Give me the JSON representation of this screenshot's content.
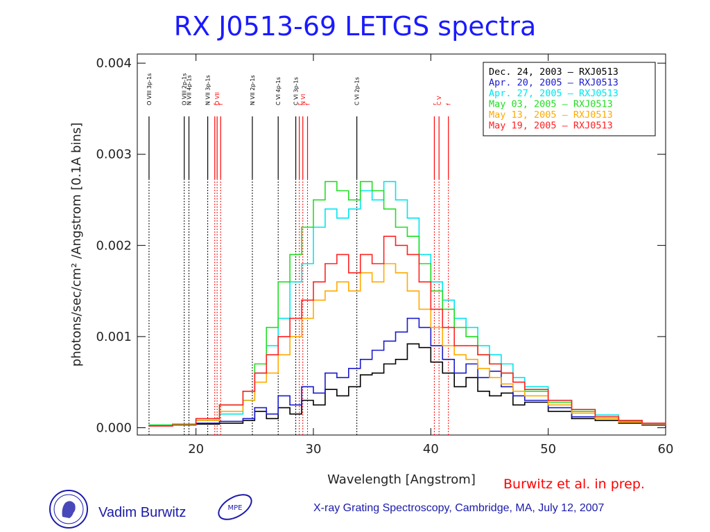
{
  "slide": {
    "title": "RX J0513-69 LETGS spectra",
    "credit": "Burwitz et al. in prep.",
    "author": "Vadim Burwitz",
    "conference": "X-ray Grating Spectroscopy, Cambridge, MA, July 12, 2007",
    "logo_right_text": "MPE"
  },
  "chart_data": {
    "type": "line",
    "xlabel": "Wavelength [Angstrom]",
    "ylabel": "photons/sec/cm² /Angstrom [0.1A bins]",
    "xlim": [
      15,
      60
    ],
    "ylim": [
      -8e-05,
      0.0041
    ],
    "xticks": [
      20,
      30,
      40,
      50,
      60
    ],
    "yticks": [
      0.0,
      0.001,
      0.002,
      0.003,
      0.004
    ],
    "ytick_labels": [
      "0.000",
      "0.001",
      "0.002",
      "0.003",
      "0.004"
    ],
    "grid": false,
    "legend_position": "top-right",
    "line_markers": [
      {
        "x": 16.0,
        "label": "O VIII 3p-1s",
        "color": "#000000"
      },
      {
        "x": 19.0,
        "label": "O VIII 2p-1s",
        "color": "#000000"
      },
      {
        "x": 19.4,
        "label": "N VII 4p-1s",
        "color": "#000000"
      },
      {
        "x": 21.0,
        "label": "N VII 3p-1s",
        "color": "#000000"
      },
      {
        "x": 21.6,
        "label": "r",
        "color": "#ff0000"
      },
      {
        "x": 21.8,
        "label": "O VII",
        "color": "#ff0000"
      },
      {
        "x": 22.1,
        "label": "f",
        "color": "#ff0000"
      },
      {
        "x": 24.8,
        "label": "N VII 2p-1s",
        "color": "#000000"
      },
      {
        "x": 27.0,
        "label": "C VI 4p-1s",
        "color": "#000000"
      },
      {
        "x": 28.5,
        "label": "C VI 3p-1s",
        "color": "#000000"
      },
      {
        "x": 28.8,
        "label": "r",
        "color": "#ff0000"
      },
      {
        "x": 29.1,
        "label": "N VI",
        "color": "#ff0000"
      },
      {
        "x": 29.5,
        "label": "f",
        "color": "#ff0000"
      },
      {
        "x": 33.7,
        "label": "C VI 2p-1s",
        "color": "#000000"
      },
      {
        "x": 40.3,
        "label": "r",
        "color": "#ff0000"
      },
      {
        "x": 40.7,
        "label": "C V",
        "color": "#ff0000"
      },
      {
        "x": 41.5,
        "label": "f",
        "color": "#ff0000"
      }
    ],
    "series": [
      {
        "name": "Dec. 24, 2003 – RXJ0513",
        "legend_date": "Dec. 24, 2003",
        "color": "#000000",
        "x": [
          16,
          18,
          20,
          22,
          24,
          25,
          26,
          27,
          28,
          29,
          30,
          31,
          32,
          33,
          34,
          35,
          36,
          37,
          38,
          39,
          40,
          41,
          42,
          43,
          44,
          45,
          46,
          47,
          48,
          50,
          52,
          54,
          56,
          58,
          60
        ],
        "y": [
          2e-05,
          3e-05,
          4e-05,
          5e-05,
          8e-05,
          0.00018,
          0.0001,
          0.00022,
          0.00015,
          0.0003,
          0.00025,
          0.00042,
          0.00035,
          0.00045,
          0.00058,
          0.0006,
          0.0007,
          0.00075,
          0.00092,
          0.00088,
          0.00072,
          0.0006,
          0.00045,
          0.00055,
          0.0004,
          0.00035,
          0.00038,
          0.00025,
          0.00028,
          0.00018,
          0.0001,
          8e-05,
          5e-05,
          3e-05,
          1e-05
        ]
      },
      {
        "name": "Apr. 20, 2005 – RXJ0513",
        "legend_date": "Apr. 20, 2005",
        "color": "#1a1acc",
        "x": [
          16,
          18,
          20,
          22,
          24,
          25,
          26,
          27,
          28,
          29,
          30,
          31,
          32,
          33,
          34,
          35,
          36,
          37,
          38,
          39,
          40,
          41,
          42,
          43,
          44,
          45,
          46,
          47,
          48,
          50,
          52,
          54,
          56,
          58,
          60
        ],
        "y": [
          2e-05,
          3e-05,
          5e-05,
          7e-05,
          0.0001,
          0.00022,
          0.00015,
          0.00035,
          0.00025,
          0.00045,
          0.00038,
          0.0006,
          0.00055,
          0.00065,
          0.00075,
          0.00085,
          0.00095,
          0.00105,
          0.0012,
          0.0011,
          0.0009,
          0.00075,
          0.0006,
          0.0007,
          0.00055,
          0.00062,
          0.00045,
          0.00035,
          0.0003,
          0.00022,
          0.00012,
          0.0001,
          6e-05,
          3e-05,
          1e-05
        ]
      },
      {
        "name": "Apr. 27, 2005 – RXJ0513",
        "legend_date": "Apr. 27, 2005",
        "color": "#00e5ee",
        "x": [
          16,
          18,
          20,
          22,
          24,
          25,
          26,
          27,
          28,
          29,
          30,
          31,
          32,
          33,
          34,
          35,
          36,
          37,
          38,
          39,
          40,
          41,
          42,
          43,
          44,
          45,
          46,
          47,
          48,
          50,
          52,
          54,
          56,
          58,
          60
        ],
        "y": [
          3e-05,
          4e-05,
          8e-05,
          0.00015,
          0.0003,
          0.0006,
          0.0009,
          0.0012,
          0.0016,
          0.0018,
          0.0022,
          0.0024,
          0.0023,
          0.0024,
          0.0026,
          0.0025,
          0.0027,
          0.0025,
          0.0023,
          0.0019,
          0.0016,
          0.0014,
          0.0012,
          0.0011,
          0.0009,
          0.0008,
          0.0007,
          0.00055,
          0.00045,
          0.0003,
          0.0002,
          0.00014,
          8e-05,
          5e-05,
          2e-05
        ]
      },
      {
        "name": "May 03, 2005 – RXJ0513",
        "legend_date": "May   03, 2005",
        "color": "#22dd22",
        "x": [
          16,
          18,
          20,
          22,
          24,
          25,
          26,
          27,
          28,
          29,
          30,
          31,
          32,
          33,
          34,
          35,
          36,
          37,
          38,
          39,
          40,
          41,
          42,
          43,
          44,
          45,
          46,
          47,
          48,
          50,
          52,
          54,
          56,
          58,
          60
        ],
        "y": [
          3e-05,
          4e-05,
          0.0001,
          0.00025,
          0.0004,
          0.0007,
          0.0011,
          0.0016,
          0.0019,
          0.0022,
          0.0025,
          0.0027,
          0.0026,
          0.0025,
          0.0027,
          0.0026,
          0.0024,
          0.0022,
          0.0021,
          0.0018,
          0.0015,
          0.0013,
          0.0011,
          0.001,
          0.0008,
          0.0007,
          0.0006,
          0.0005,
          0.0004,
          0.00028,
          0.00018,
          0.00012,
          7e-05,
          4e-05,
          2e-05
        ]
      },
      {
        "name": "May 13, 2005 – RXJ0513",
        "legend_date": "May   13, 2005",
        "color": "#ffaa00",
        "x": [
          16,
          18,
          20,
          22,
          24,
          25,
          26,
          27,
          28,
          29,
          30,
          31,
          32,
          33,
          34,
          35,
          36,
          37,
          38,
          39,
          40,
          41,
          42,
          43,
          44,
          45,
          46,
          47,
          48,
          50,
          52,
          54,
          56,
          58,
          60
        ],
        "y": [
          2e-05,
          3e-05,
          8e-05,
          0.00018,
          0.0003,
          0.0005,
          0.0006,
          0.0008,
          0.001,
          0.0012,
          0.0014,
          0.0015,
          0.0016,
          0.0015,
          0.0017,
          0.0016,
          0.0018,
          0.0017,
          0.0015,
          0.0013,
          0.0011,
          0.0009,
          0.0008,
          0.00075,
          0.00065,
          0.00055,
          0.00048,
          0.0004,
          0.00035,
          0.00025,
          0.00016,
          0.0001,
          6e-05,
          4e-05,
          2e-05
        ]
      },
      {
        "name": "May 19, 2005 – RXJ0513",
        "legend_date": "May   19, 2005",
        "color": "#ff2222",
        "x": [
          16,
          18,
          20,
          22,
          24,
          25,
          26,
          27,
          28,
          29,
          30,
          31,
          32,
          33,
          34,
          35,
          36,
          37,
          38,
          39,
          40,
          41,
          42,
          43,
          44,
          45,
          46,
          47,
          48,
          50,
          52,
          54,
          56,
          58,
          60
        ],
        "y": [
          2e-05,
          3e-05,
          0.0001,
          0.00025,
          0.0004,
          0.0006,
          0.0008,
          0.001,
          0.0012,
          0.0014,
          0.0016,
          0.0018,
          0.0019,
          0.0017,
          0.0019,
          0.0018,
          0.0021,
          0.002,
          0.0019,
          0.0016,
          0.0013,
          0.0011,
          0.0009,
          0.0009,
          0.0008,
          0.0007,
          0.0006,
          0.0005,
          0.00042,
          0.0003,
          0.0002,
          0.00012,
          8e-05,
          5e-05,
          2e-05
        ]
      }
    ],
    "legend_object": "RXJ0513"
  }
}
